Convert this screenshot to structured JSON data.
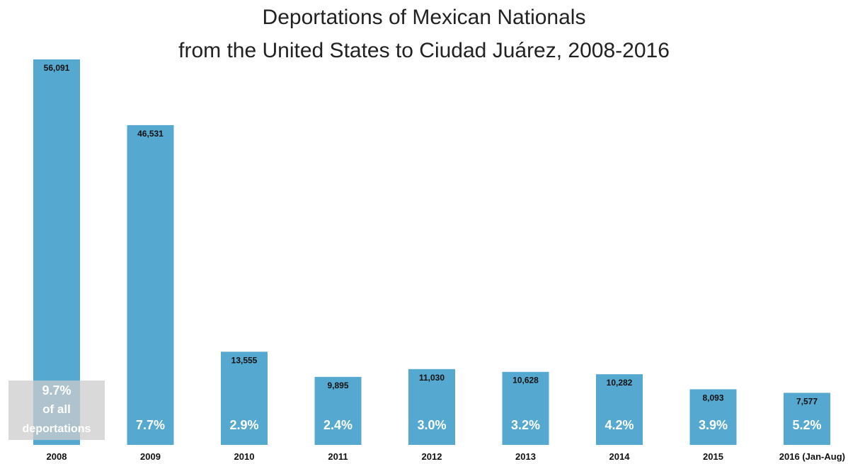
{
  "chart_data": {
    "type": "bar",
    "title_line1": "Deportations of Mexican Nationals",
    "title_line2": "from the United States to Ciudad Juárez, 2008-2016",
    "categories": [
      "2008",
      "2009",
      "2010",
      "2011",
      "2012",
      "2013",
      "2014",
      "2015",
      "2016 (Jan-Aug)"
    ],
    "values": [
      56091,
      46531,
      13555,
      9895,
      11030,
      10628,
      10282,
      8093,
      7577
    ],
    "value_labels": [
      "56,091",
      "46,531",
      "13,555",
      "9,895",
      "11,030",
      "10,628",
      "10,282",
      "8,093",
      "7,577"
    ],
    "share_labels": [
      "9.7%",
      "7.7%",
      "2.9%",
      "2.4%",
      "3.0%",
      "3.2%",
      "4.2%",
      "3.9%",
      "5.2%"
    ],
    "first_share_note": [
      "of all",
      "deportations"
    ],
    "ylim": [
      0,
      56091
    ],
    "grid": false,
    "legend": "none",
    "colors": {
      "bar": "#55a8cf",
      "value_label": "#111111",
      "share_label": "#ffffff",
      "annotation_box": "#cccccc",
      "axis_label": "#111111"
    }
  }
}
